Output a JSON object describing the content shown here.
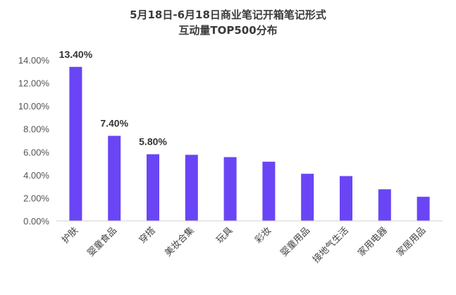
{
  "chart_data": {
    "type": "bar",
    "title": "5月18日-6月18日商业笔记开箱笔记形式",
    "subtitle": "互动量TOP500分布",
    "categories": [
      "护肤",
      "婴童食品",
      "穿搭",
      "美妆合集",
      "玩具",
      "彩妆",
      "婴童用品",
      "接地气生活",
      "家用电器",
      "家居用品"
    ],
    "values": [
      13.4,
      7.4,
      5.8,
      5.75,
      5.55,
      5.15,
      4.1,
      3.9,
      2.75,
      2.1
    ],
    "data_labels": [
      "13.40%",
      "7.40%",
      "5.80%",
      "",
      "",
      "",
      "",
      "",
      "",
      ""
    ],
    "yticks": [
      "0.00%",
      "2.00%",
      "4.00%",
      "6.00%",
      "8.00%",
      "10.00%",
      "12.00%",
      "14.00%"
    ],
    "ylim": [
      0,
      14
    ],
    "bar_color": "#6a45f5",
    "grid": false,
    "legend": "none"
  }
}
